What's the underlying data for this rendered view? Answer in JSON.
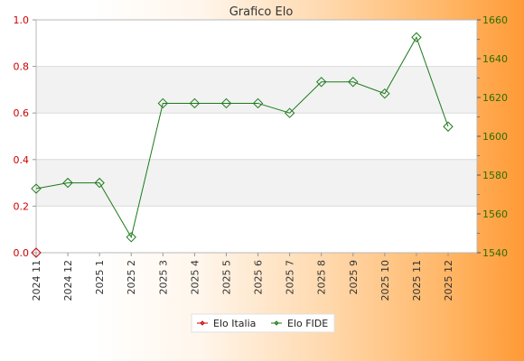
{
  "chart_data": {
    "type": "line",
    "title": "Grafico Elo",
    "categories": [
      "2024 11",
      "2024 12",
      "2025 1",
      "2025 2",
      "2025 3",
      "2025 4",
      "2025 5",
      "2025 6",
      "2025 7",
      "2025 8",
      "2025 9",
      "2025 10",
      "2025 11",
      "2025 12"
    ],
    "y_left": {
      "range": [
        0,
        1
      ],
      "ticks": [
        "0.0",
        "0.2",
        "0.4",
        "0.6",
        "0.8",
        "1.0"
      ],
      "color": "#cc0000"
    },
    "y_right": {
      "range": [
        1540,
        1660
      ],
      "ticks": [
        "1540",
        "1560",
        "1580",
        "1600",
        "1620",
        "1640",
        "1660"
      ],
      "color": "#2a6e00"
    },
    "series": [
      {
        "name": "Elo Italia",
        "axis": "left",
        "color": "#cc0000",
        "values": [
          0,
          null,
          null,
          null,
          null,
          null,
          null,
          null,
          null,
          null,
          null,
          null,
          null,
          null
        ]
      },
      {
        "name": "Elo FIDE",
        "axis": "right",
        "color": "#1a7a1a",
        "values": [
          1573,
          1576,
          1576,
          1548,
          1617,
          1617,
          1617,
          1617,
          1612,
          1628,
          1628,
          1622,
          1651,
          1605
        ]
      }
    ],
    "grid": true,
    "legend": "bottom"
  }
}
